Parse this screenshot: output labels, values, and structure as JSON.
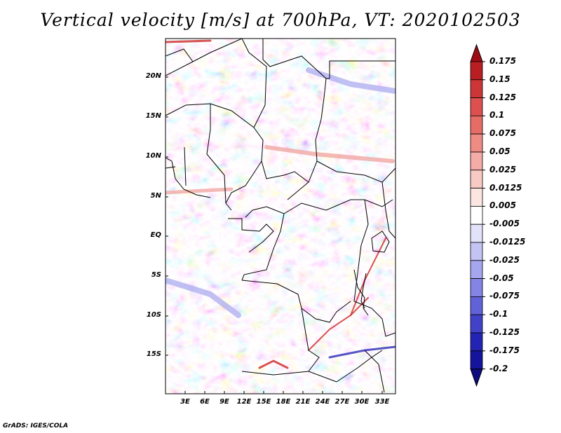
{
  "title": "Vertical velocity [m/s] at 700hPa, VT: 2020102503",
  "credit": "GrADS: IGES/COLA",
  "map": {
    "lat_labels": [
      "20N",
      "15N",
      "10N",
      "5N",
      "EQ",
      "5S",
      "10S",
      "15S"
    ],
    "lon_labels": [
      "3E",
      "6E",
      "9E",
      "12E",
      "15E",
      "18E",
      "21E",
      "24E",
      "27E",
      "30E",
      "33E"
    ]
  },
  "colorbar": {
    "labels": [
      "0.175",
      "0.15",
      "0.125",
      "0.1",
      "0.075",
      "0.05",
      "0.025",
      "0.0125",
      "0.005",
      "-0.005",
      "-0.0125",
      "-0.025",
      "-0.05",
      "-0.075",
      "-0.1",
      "-0.125",
      "-0.175",
      "-0.2"
    ],
    "colors": [
      "#a00c14",
      "#b81e22",
      "#cc3636",
      "#dc5050",
      "#e66c66",
      "#ee8c84",
      "#f4aca6",
      "#f8cac4",
      "#fce6e2",
      "#ffffff",
      "#e2e2fa",
      "#c4c4f4",
      "#a6a6ee",
      "#8484e4",
      "#6262d8",
      "#4242c8",
      "#2424b4",
      "#14149c",
      "#0c0c80"
    ]
  },
  "palette": {
    "positive_strong": "#cc2828",
    "positive_weak": "#f0a8a4",
    "negative_strong": "#2a2ab8",
    "negative_weak": "#b0b0f0",
    "neutral": "#ffffff"
  }
}
